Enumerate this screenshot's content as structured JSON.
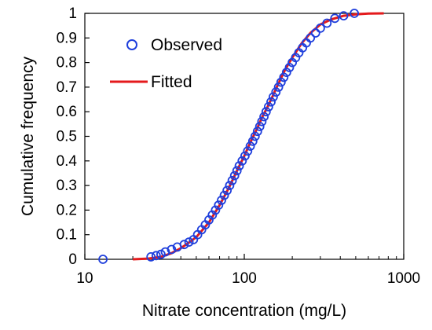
{
  "chart_data": {
    "type": "scatter",
    "title": "",
    "xlabel": "Nitrate concentration (mg/L)",
    "ylabel": "Cumulative frequency",
    "xscale": "log",
    "xlim": [
      10,
      1000
    ],
    "ylim": [
      0,
      1
    ],
    "x_ticks": [
      "10",
      "100",
      "1000"
    ],
    "y_ticks": [
      "0",
      "0.1",
      "0.2",
      "0.3",
      "0.4",
      "0.5",
      "0.6",
      "0.7",
      "0.8",
      "0.9",
      "1"
    ],
    "grid": false,
    "legend": {
      "placement": "top-left",
      "entries": [
        {
          "label": "Observed",
          "marker": "open-circle",
          "color": "#1f3fdc"
        },
        {
          "label": "Fitted",
          "marker": "line",
          "color": "#e41a1c"
        }
      ]
    },
    "series": [
      {
        "name": "Observed",
        "kind": "scatter",
        "color": "#1f3fdc",
        "points": [
          [
            13,
            0.0
          ],
          [
            26,
            0.01
          ],
          [
            28,
            0.015
          ],
          [
            30,
            0.02
          ],
          [
            32,
            0.03
          ],
          [
            35,
            0.04
          ],
          [
            38,
            0.05
          ],
          [
            42,
            0.06
          ],
          [
            45,
            0.07
          ],
          [
            48,
            0.08
          ],
          [
            51,
            0.1
          ],
          [
            54,
            0.12
          ],
          [
            57,
            0.14
          ],
          [
            60,
            0.16
          ],
          [
            63,
            0.18
          ],
          [
            66,
            0.2
          ],
          [
            69,
            0.22
          ],
          [
            72,
            0.24
          ],
          [
            75,
            0.26
          ],
          [
            78,
            0.28
          ],
          [
            81,
            0.3
          ],
          [
            84,
            0.32
          ],
          [
            87,
            0.34
          ],
          [
            90,
            0.36
          ],
          [
            93,
            0.38
          ],
          [
            97,
            0.4
          ],
          [
            101,
            0.42
          ],
          [
            105,
            0.44
          ],
          [
            109,
            0.46
          ],
          [
            113,
            0.48
          ],
          [
            117,
            0.5
          ],
          [
            121,
            0.52
          ],
          [
            125,
            0.54
          ],
          [
            129,
            0.56
          ],
          [
            133,
            0.58
          ],
          [
            137,
            0.6
          ],
          [
            142,
            0.62
          ],
          [
            147,
            0.64
          ],
          [
            152,
            0.66
          ],
          [
            158,
            0.68
          ],
          [
            164,
            0.7
          ],
          [
            170,
            0.72
          ],
          [
            177,
            0.74
          ],
          [
            184,
            0.76
          ],
          [
            192,
            0.78
          ],
          [
            200,
            0.8
          ],
          [
            210,
            0.82
          ],
          [
            220,
            0.84
          ],
          [
            232,
            0.86
          ],
          [
            245,
            0.88
          ],
          [
            260,
            0.9
          ],
          [
            280,
            0.92
          ],
          [
            300,
            0.94
          ],
          [
            330,
            0.96
          ],
          [
            370,
            0.98
          ],
          [
            420,
            0.99
          ],
          [
            490,
            1.0
          ]
        ]
      },
      {
        "name": "Fitted",
        "kind": "line",
        "color": "#e41a1c",
        "points": [
          [
            20,
            0.0
          ],
          [
            25,
            0.003
          ],
          [
            30,
            0.01
          ],
          [
            35,
            0.025
          ],
          [
            40,
            0.045
          ],
          [
            45,
            0.068
          ],
          [
            50,
            0.09
          ],
          [
            60,
            0.15
          ],
          [
            70,
            0.22
          ],
          [
            80,
            0.29
          ],
          [
            90,
            0.36
          ],
          [
            100,
            0.42
          ],
          [
            110,
            0.48
          ],
          [
            120,
            0.53
          ],
          [
            130,
            0.58
          ],
          [
            140,
            0.62
          ],
          [
            150,
            0.66
          ],
          [
            160,
            0.7
          ],
          [
            180,
            0.77
          ],
          [
            200,
            0.82
          ],
          [
            230,
            0.88
          ],
          [
            260,
            0.92
          ],
          [
            300,
            0.955
          ],
          [
            350,
            0.975
          ],
          [
            420,
            0.99
          ],
          [
            500,
            0.996
          ],
          [
            600,
            0.999
          ],
          [
            750,
            1.0
          ]
        ]
      }
    ]
  }
}
